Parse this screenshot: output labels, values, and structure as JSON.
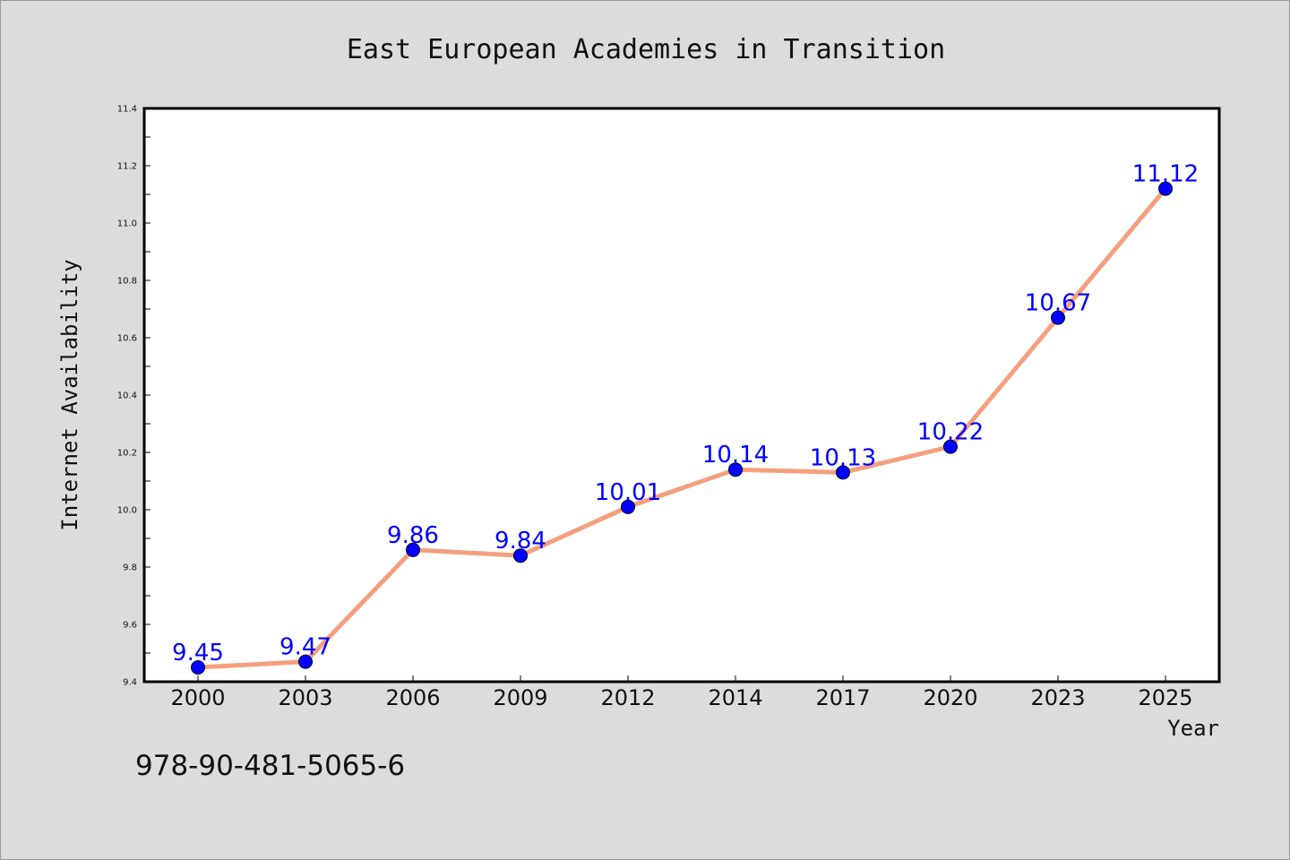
{
  "chart_data": {
    "type": "line",
    "title": "East European Academies in Transition",
    "xlabel": "Year",
    "ylabel": "Internet Availability",
    "categories": [
      "2000",
      "2003",
      "2006",
      "2009",
      "2012",
      "2014",
      "2017",
      "2020",
      "2023",
      "2025"
    ],
    "series": [
      {
        "values": [
          9.45,
          9.47,
          9.86,
          9.84,
          10.01,
          10.14,
          10.13,
          10.22,
          10.67,
          11.12
        ],
        "data_labels": [
          "9.45",
          "9.47",
          "9.86",
          "9.84",
          "10.01",
          "10.14",
          "10.13",
          "10.22",
          "10.67",
          "11.12"
        ]
      }
    ],
    "ylim": [
      9.4,
      11.4
    ],
    "yticks": [
      9.4,
      9.6,
      9.8,
      10.0,
      10.2,
      10.4,
      10.6,
      10.8,
      11.0,
      11.2,
      11.4
    ],
    "ytick_labels": [
      "9.4",
      "9.6",
      "9.8",
      "10.0",
      "10.2",
      "10.4",
      "10.6",
      "10.8",
      "11.0",
      "11.2",
      "11.4"
    ],
    "grid": false,
    "legend": "none",
    "colors": {
      "line": "#f4a07e",
      "marker": "#0000ff",
      "data_label": "#0000ff",
      "background": "#dcdcdc",
      "plot_area": "#ffffff"
    }
  },
  "footnote": "978-90-481-5065-6"
}
